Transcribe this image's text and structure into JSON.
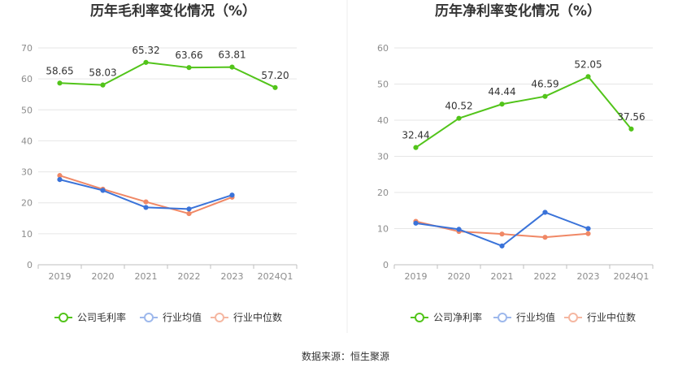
{
  "colors": {
    "company": "#52c41a",
    "industry_avg": "#3a73d9",
    "industry_median": "#f08866",
    "grid": "#e6e6e6",
    "axis": "#bfbfbf"
  },
  "source": "数据来源：恒生聚源",
  "chart_data": [
    {
      "type": "line",
      "title": "历年毛利率变化情况（%）",
      "categories": [
        "2019",
        "2020",
        "2021",
        "2022",
        "2023",
        "2024Q1"
      ],
      "ylim": [
        0,
        70
      ],
      "yticks": [
        0,
        10,
        20,
        30,
        40,
        50,
        60,
        70
      ],
      "grid": true,
      "legend_position": "bottom",
      "series": [
        {
          "name": "公司毛利率",
          "key": "company",
          "values": [
            58.65,
            58.03,
            65.32,
            63.66,
            63.81,
            57.2
          ],
          "labels": [
            "58.65",
            "58.03",
            "65.32",
            "63.66",
            "63.81",
            "57.20"
          ]
        },
        {
          "name": "行业均值",
          "key": "industry_avg",
          "values": [
            27.5,
            24.0,
            18.5,
            18.0,
            22.5,
            null
          ]
        },
        {
          "name": "行业中位数",
          "key": "industry_median",
          "values": [
            28.8,
            24.4,
            20.3,
            16.5,
            21.8,
            null
          ]
        }
      ]
    },
    {
      "type": "line",
      "title": "历年净利率变化情况（%）",
      "categories": [
        "2019",
        "2020",
        "2021",
        "2022",
        "2023",
        "2024Q1"
      ],
      "ylim": [
        0,
        60
      ],
      "yticks": [
        0,
        10,
        20,
        30,
        40,
        50,
        60
      ],
      "grid": true,
      "legend_position": "bottom",
      "series": [
        {
          "name": "公司净利率",
          "key": "company",
          "values": [
            32.44,
            40.52,
            44.44,
            46.59,
            52.05,
            37.56
          ],
          "labels": [
            "32.44",
            "40.52",
            "44.44",
            "46.59",
            "52.05",
            "37.56"
          ]
        },
        {
          "name": "行业均值",
          "key": "industry_avg",
          "values": [
            11.5,
            9.8,
            5.2,
            14.5,
            10.0,
            null
          ]
        },
        {
          "name": "行业中位数",
          "key": "industry_median",
          "values": [
            12.0,
            9.2,
            8.5,
            7.6,
            8.6,
            null
          ]
        }
      ]
    }
  ]
}
